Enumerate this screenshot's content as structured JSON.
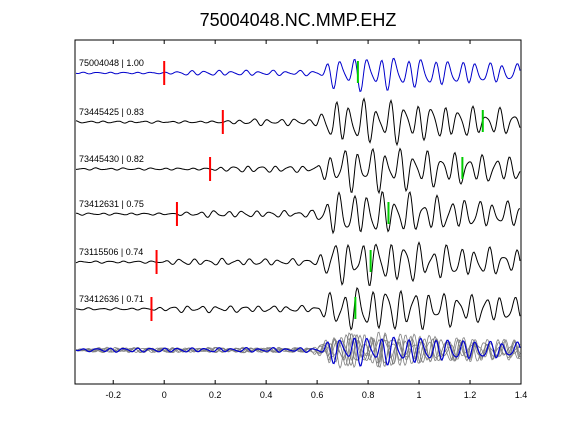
{
  "chart_data": {
    "type": "line",
    "title": "75004048.NC.MMP.EHZ",
    "xlabel": "",
    "ylabel": "",
    "xlim": [
      -0.35,
      1.4
    ],
    "x_ticks": [
      "-0.2",
      "0",
      "0.2",
      "0.4",
      "0.6",
      "0.8",
      "1",
      "1.2",
      "1.4"
    ],
    "x_tick_values": [
      -0.2,
      0,
      0.2,
      0.4,
      0.6,
      0.8,
      1.0,
      1.2,
      1.4
    ],
    "grid": false,
    "traces": [
      {
        "label": "75004048 | 1.00",
        "color": "#0000cc",
        "red_pick": 0.0,
        "green_pick": 0.76
      },
      {
        "label": "73445425 | 0.83",
        "color": "#000000",
        "red_pick": 0.23,
        "green_pick": 1.25
      },
      {
        "label": "73445430 | 0.82",
        "color": "#000000",
        "red_pick": 0.18,
        "green_pick": 1.17
      },
      {
        "label": "73412631 | 0.75",
        "color": "#000000",
        "red_pick": 0.05,
        "green_pick": 0.88
      },
      {
        "label": "73115506 | 0.74",
        "color": "#000000",
        "red_pick": -0.03,
        "green_pick": 0.81
      },
      {
        "label": "73412636 | 0.71",
        "color": "#000000",
        "red_pick": -0.05,
        "green_pick": 0.75
      }
    ],
    "stack": {
      "color_overlay": "#808080",
      "color_main": "#0000cc"
    },
    "pick_colors": {
      "red": "#ff0000",
      "green": "#00cc00"
    }
  }
}
